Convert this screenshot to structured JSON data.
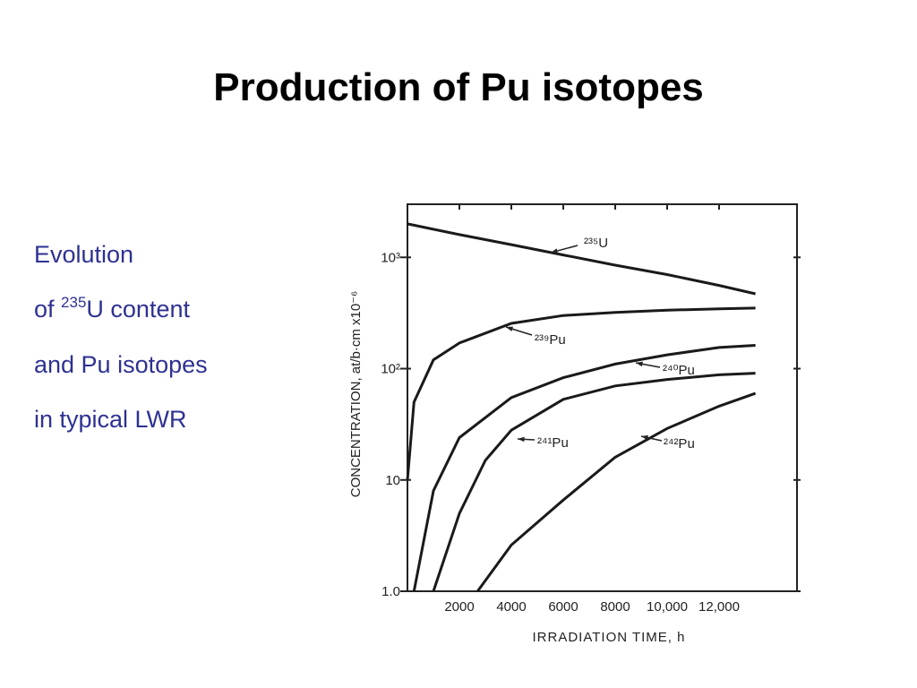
{
  "slide_title": "Production of Pu isotopes",
  "description": {
    "lines": [
      [
        "Evolution"
      ],
      [
        "of ",
        "235",
        "U content"
      ],
      [
        "and Pu isotopes"
      ],
      [
        "in typical LWR"
      ]
    ]
  },
  "chart_data": {
    "type": "line",
    "x_label": "IRRADIATION TIME, h",
    "y_label": "CONCENTRATION, at/b·cm x10⁻⁶",
    "log_y": true,
    "xlim": [
      0,
      15000
    ],
    "ylim": [
      1,
      3000
    ],
    "xticks": [
      2000,
      4000,
      6000,
      8000,
      {
        "value": 10000,
        "label": "10,000"
      },
      {
        "value": 12000,
        "label": "12,000"
      }
    ],
    "yticks": [
      {
        "value": 1,
        "label": "1.0"
      },
      10,
      {
        "value": 100,
        "label": "10²"
      },
      {
        "value": 1000,
        "label": "10³"
      }
    ],
    "series": [
      {
        "name": "²³⁵U",
        "color": "#1a1a1a",
        "x": [
          0,
          2000,
          4000,
          6000,
          8000,
          10000,
          12000,
          13400
        ],
        "values": [
          2000,
          1600,
          1300,
          1050,
          850,
          700,
          560,
          470
        ]
      },
      {
        "name": "²³⁹Pu",
        "color": "#1a1a1a",
        "x": [
          0,
          250,
          1000,
          2000,
          4000,
          6000,
          8000,
          10000,
          12000,
          13400
        ],
        "values": [
          10,
          50,
          120,
          170,
          255,
          300,
          320,
          335,
          345,
          350
        ]
      },
      {
        "name": "²⁴⁰Pu",
        "color": "#1a1a1a",
        "x": [
          250,
          1000,
          2000,
          4000,
          6000,
          8000,
          10000,
          12000,
          13400
        ],
        "values": [
          1,
          8,
          24,
          55,
          83,
          110,
          133,
          155,
          162
        ]
      },
      {
        "name": "²⁴¹Pu",
        "color": "#1a1a1a",
        "x": [
          1000,
          2000,
          3000,
          4000,
          6000,
          8000,
          10000,
          12000,
          13400
        ],
        "values": [
          1,
          5,
          15,
          28,
          53,
          70,
          80,
          88,
          91
        ]
      },
      {
        "name": "²⁴²Pu",
        "color": "#1a1a1a",
        "x": [
          2700,
          4000,
          6000,
          8000,
          10000,
          12000,
          13400
        ],
        "values": [
          1,
          2.6,
          6.6,
          16,
          29,
          46,
          60
        ]
      }
    ]
  }
}
